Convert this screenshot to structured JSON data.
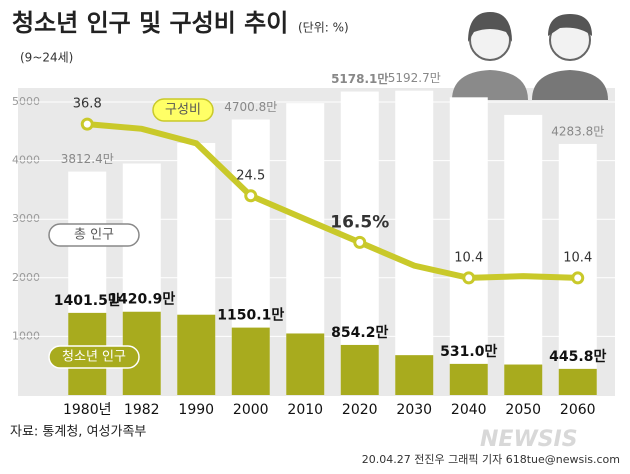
{
  "chart_data": {
    "type": "bar",
    "title": "청소년 인구 및 구성비 추이",
    "unit": "(단위: %)",
    "subtitle": "(9~24세)",
    "categories": [
      "1980년",
      "1982",
      "1990",
      "2000",
      "2010",
      "2020",
      "2030",
      "2040",
      "2050",
      "2060"
    ],
    "series": [
      {
        "name": "총 인구",
        "type": "bar",
        "color": "#ffffff",
        "values": [
          3812.4,
          3950,
          4300,
          4700.8,
          4980,
          5178.1,
          5192.7,
          5080,
          4780,
          4283.8
        ],
        "value_labels": [
          "3812.4만",
          null,
          null,
          "4700.8만",
          null,
          "5178.1만",
          "5192.7만",
          null,
          null,
          "4283.8만"
        ]
      },
      {
        "name": "청소년 인구",
        "type": "bar",
        "color": "#a8ab1e",
        "values": [
          1401.5,
          1420.9,
          1370,
          1150.1,
          1050,
          854.2,
          680,
          531.0,
          520,
          445.8
        ],
        "value_labels": [
          "1401.5만",
          "1420.9만",
          null,
          "1150.1만",
          null,
          "854.2만",
          null,
          "531.0만",
          null,
          "445.8만"
        ]
      },
      {
        "name": "구성비",
        "type": "line",
        "axis": "y2",
        "color": "#c9c92a",
        "values": [
          36.8,
          36,
          33.5,
          24.5,
          20.5,
          16.5,
          12.5,
          10.4,
          10.7,
          10.4
        ],
        "value_labels": [
          "36.8",
          null,
          null,
          "24.5",
          null,
          "16.5%",
          null,
          "10.4",
          null,
          "10.4"
        ]
      }
    ],
    "ylim": [
      0,
      5000
    ],
    "yticks": [
      1000,
      2000,
      3000,
      4000,
      5000
    ],
    "y2lim": [
      -9.7,
      40.6
    ],
    "grid": true,
    "source": "자료: 통계청, 여성가족부",
    "credit": "20.04.27 전진우 그래픽 기자 618tue@newsis.com",
    "watermark": "NEWSIS"
  }
}
